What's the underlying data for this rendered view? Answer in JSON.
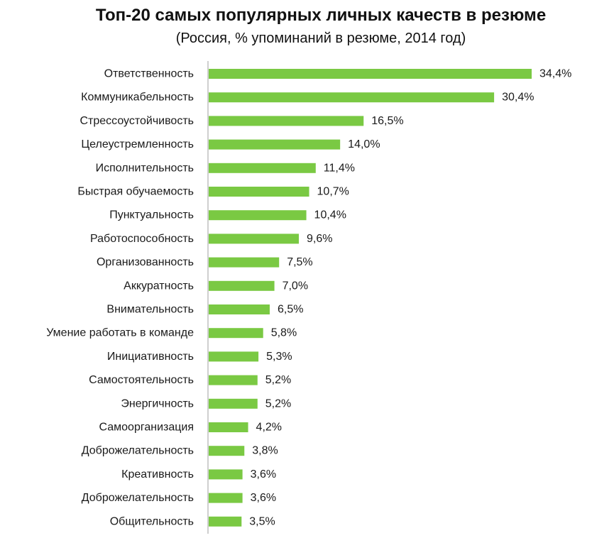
{
  "chart_data": {
    "type": "bar",
    "orientation": "horizontal",
    "title": "Топ-20 самых популярных личных качеств в резюме",
    "subtitle": "(Россия, % упоминаний в резюме, 2014 год)",
    "categories": [
      "Ответственность",
      "Коммуникабельность",
      "Стрессоустойчивость",
      "Целеустремленность",
      "Исполнительность",
      "Быстрая обучаемость",
      "Пунктуальность",
      "Работоспособность",
      "Организованность",
      "Аккуратность",
      "Внимательность",
      "Умение работать в команде",
      "Инициативность",
      "Самостоятельность",
      "Энергичность",
      "Самоорганизация",
      "Доброжелательность",
      "Креативность",
      "Доброжелательность",
      "Общительность"
    ],
    "values": [
      34.4,
      30.4,
      16.5,
      14.0,
      11.4,
      10.7,
      10.4,
      9.6,
      7.5,
      7.0,
      6.5,
      5.8,
      5.3,
      5.2,
      5.2,
      4.2,
      3.8,
      3.6,
      3.6,
      3.5
    ],
    "value_labels": [
      "34,4%",
      "30,4%",
      "16,5%",
      "14,0%",
      "11,4%",
      "10,7%",
      "10,4%",
      "9,6%",
      "7,5%",
      "7,0%",
      "6,5%",
      "5,8%",
      "5,3%",
      "5,2%",
      "5,2%",
      "4,2%",
      "3,8%",
      "3,6%",
      "3,6%",
      "3,5%"
    ],
    "xlabel": "",
    "ylabel": "",
    "xlim": [
      0,
      35
    ],
    "grid": false,
    "legend": "none",
    "bar_color": "#7ac943",
    "axis_color": "#bfbfbf"
  }
}
